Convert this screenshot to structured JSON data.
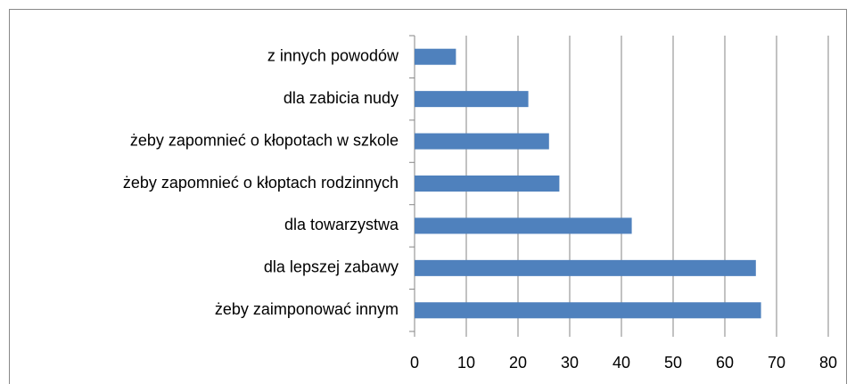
{
  "chart_data": {
    "type": "barh",
    "categories": [
      "z innych powodów",
      "dla zabicia nudy",
      "żeby zapomnieć o kłopotach w szkole",
      "żeby zapomnieć o kłoptach rodzinnych",
      "dla towarzystwa",
      "dla lepszej zabawy",
      "żeby zaimponować innym"
    ],
    "values": [
      8,
      22,
      26,
      28,
      42,
      66,
      67
    ],
    "color": "#4f81bd",
    "xlim": [
      0,
      80
    ],
    "xticks": [
      0,
      10,
      20,
      30,
      40,
      50,
      60,
      70,
      80
    ],
    "grid": true
  }
}
